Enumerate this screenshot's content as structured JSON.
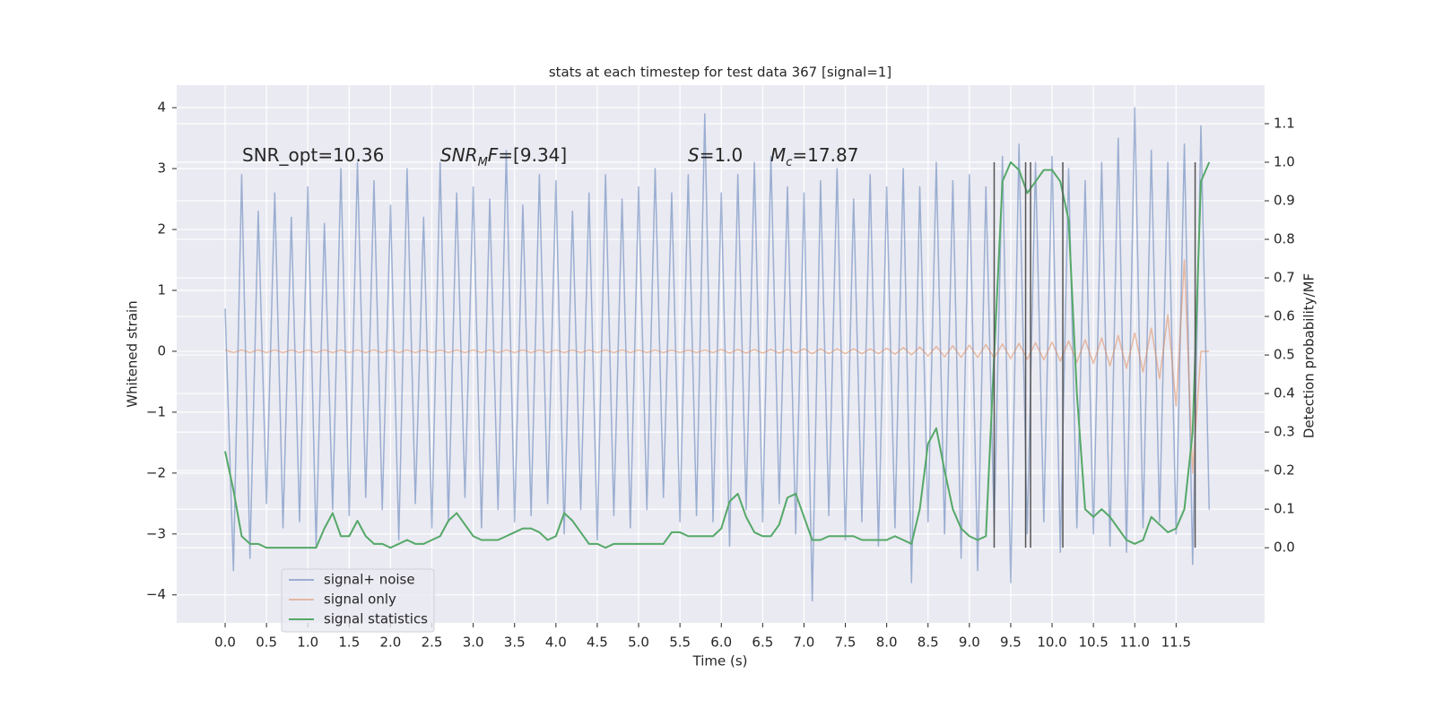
{
  "chart_data": {
    "type": "line",
    "title": "stats at each timestep for test data 367 [signal=1]",
    "xlabel": "Time (s)",
    "ylabel": "Whitened strain",
    "y2label": "Detection probability/MF",
    "xlim": [
      -0.586,
      12.57
    ],
    "ylim": [
      -4.46,
      4.37
    ],
    "y2lim": [
      -0.195,
      1.2
    ],
    "grid": true,
    "legend": "lower left",
    "xticks": [
      {
        "value": 0,
        "label": "0.0"
      },
      {
        "value": 0.5,
        "label": "0.5"
      },
      {
        "value": 1,
        "label": "1.0"
      },
      {
        "value": 1.5,
        "label": "1.5"
      },
      {
        "value": 2,
        "label": "2.0"
      },
      {
        "value": 2.5,
        "label": "2.5"
      },
      {
        "value": 3,
        "label": "3.0"
      },
      {
        "value": 3.5,
        "label": "3.5"
      },
      {
        "value": 4,
        "label": "4.0"
      },
      {
        "value": 4.5,
        "label": "4.5"
      },
      {
        "value": 5,
        "label": "5.0"
      },
      {
        "value": 5.5,
        "label": "5.5"
      },
      {
        "value": 6,
        "label": "6.0"
      },
      {
        "value": 6.5,
        "label": "6.5"
      },
      {
        "value": 7,
        "label": "7.0"
      },
      {
        "value": 7.5,
        "label": "7.5"
      },
      {
        "value": 8,
        "label": "8.0"
      },
      {
        "value": 8.5,
        "label": "8.5"
      },
      {
        "value": 9,
        "label": "9.0"
      },
      {
        "value": 9.5,
        "label": "9.5"
      },
      {
        "value": 10,
        "label": "10.0"
      },
      {
        "value": 10.5,
        "label": "10.5"
      },
      {
        "value": 11,
        "label": "11.0"
      },
      {
        "value": 11.5,
        "label": "11.5"
      }
    ],
    "yticks": [
      {
        "value": -4,
        "label": "−4"
      },
      {
        "value": -3,
        "label": "−3"
      },
      {
        "value": -2,
        "label": "−2"
      },
      {
        "value": -1,
        "label": "−1"
      },
      0,
      1,
      2,
      3,
      4
    ],
    "y2ticks": [
      {
        "value": 0,
        "label": "0.0"
      },
      0.1,
      0.2,
      0.3,
      0.4,
      0.5,
      0.6,
      0.7,
      0.8,
      0.9,
      {
        "value": 1,
        "label": "1.0"
      },
      1.1
    ],
    "x": [
      0,
      0.1,
      0.2,
      0.3,
      0.4,
      0.5,
      0.6,
      0.7,
      0.8,
      0.9,
      1,
      1.1,
      1.2,
      1.3,
      1.4,
      1.5,
      1.6,
      1.7,
      1.8,
      1.9,
      2,
      2.1,
      2.2,
      2.3,
      2.4,
      2.5,
      2.6,
      2.7,
      2.8,
      2.9,
      3,
      3.1,
      3.2,
      3.3,
      3.4,
      3.5,
      3.6,
      3.7,
      3.8,
      3.9,
      4,
      4.1,
      4.2,
      4.3,
      4.4,
      4.5,
      4.6,
      4.7,
      4.8,
      4.9,
      5,
      5.1,
      5.2,
      5.3,
      5.4,
      5.5,
      5.6,
      5.7,
      5.8,
      5.9,
      6,
      6.1,
      6.2,
      6.3,
      6.4,
      6.5,
      6.6,
      6.7,
      6.8,
      6.9,
      7,
      7.1,
      7.2,
      7.3,
      7.4,
      7.5,
      7.6,
      7.7,
      7.8,
      7.9,
      8,
      8.1,
      8.2,
      8.3,
      8.4,
      8.5,
      8.6,
      8.7,
      8.8,
      8.9,
      9,
      9.1,
      9.2,
      9.3,
      9.4,
      9.5,
      9.6,
      9.7,
      9.8,
      9.9,
      10,
      10.1,
      10.2,
      10.3,
      10.4,
      10.5,
      10.6,
      10.7,
      10.8,
      10.9,
      11,
      11.1,
      11.2,
      11.3,
      11.4,
      11.5,
      11.6,
      11.7,
      11.8,
      11.9
    ],
    "series": [
      {
        "name": "signal+ noise",
        "color": "#4c72b0",
        "alpha": 0.5,
        "values": [
          0.7,
          -3.6,
          2.9,
          -3.4,
          2.3,
          -2.5,
          2.6,
          -2.9,
          2.2,
          -2.8,
          2.7,
          -3.2,
          2.1,
          -2.6,
          3.0,
          -2.7,
          3.1,
          -2.4,
          2.8,
          -2.6,
          2.4,
          -3.1,
          3.0,
          -2.5,
          2.2,
          -2.9,
          3.1,
          -2.8,
          2.6,
          -2.4,
          2.7,
          -2.9,
          2.5,
          -2.6,
          3.3,
          -2.8,
          2.4,
          -2.7,
          2.9,
          -2.5,
          2.8,
          -3.0,
          2.3,
          -2.6,
          2.6,
          -3.1,
          2.9,
          -2.7,
          2.5,
          -2.9,
          2.7,
          -2.6,
          3.0,
          -2.4,
          2.6,
          -2.8,
          2.9,
          -2.7,
          3.9,
          -2.8,
          2.6,
          -3.2,
          2.9,
          -2.6,
          3.1,
          -2.8,
          3.2,
          -2.5,
          2.7,
          -3.0,
          2.6,
          -4.1,
          2.8,
          -2.7,
          3.0,
          -3.1,
          2.5,
          -2.8,
          2.9,
          -3.2,
          2.7,
          -2.9,
          3.0,
          -3.8,
          2.7,
          -2.8,
          3.1,
          -3.0,
          2.8,
          -3.4,
          2.9,
          -3.6,
          2.7,
          -2.9,
          3.2,
          -3.8,
          3.4,
          -3.0,
          3.1,
          -2.8,
          3.2,
          -3.3,
          3.0,
          -2.9,
          2.8,
          -3.0,
          3.1,
          -3.2,
          3.5,
          -3.3,
          4.0,
          -2.9,
          3.3,
          -2.8,
          3.1,
          -3.0,
          3.4,
          -3.5,
          3.7,
          -2.6
        ]
      },
      {
        "name": "signal only",
        "color": "#dd8452",
        "alpha": 0.5,
        "values": [
          0.02,
          -0.02,
          0.02,
          -0.02,
          0.02,
          -0.02,
          0.02,
          -0.02,
          0.02,
          -0.02,
          0.02,
          -0.02,
          0.02,
          -0.02,
          0.02,
          -0.02,
          0.02,
          -0.02,
          0.02,
          -0.02,
          0.02,
          -0.02,
          0.02,
          -0.02,
          0.02,
          -0.02,
          0.02,
          -0.02,
          0.02,
          -0.02,
          0.02,
          -0.02,
          0.02,
          -0.02,
          0.02,
          -0.02,
          0.02,
          -0.02,
          0.02,
          -0.02,
          0.02,
          -0.02,
          0.02,
          -0.02,
          0.02,
          -0.02,
          0.02,
          -0.02,
          0.02,
          -0.02,
          0.02,
          -0.02,
          0.02,
          -0.02,
          0.02,
          -0.02,
          0.02,
          -0.02,
          0.02,
          -0.02,
          0.03,
          -0.03,
          0.03,
          -0.03,
          0.03,
          -0.03,
          0.03,
          -0.03,
          0.03,
          -0.03,
          0.04,
          -0.04,
          0.04,
          -0.04,
          0.04,
          -0.04,
          0.04,
          -0.04,
          0.04,
          -0.04,
          0.05,
          -0.05,
          0.06,
          -0.06,
          0.07,
          -0.08,
          0.08,
          -0.09,
          0.09,
          -0.1,
          0.1,
          -0.1,
          0.11,
          -0.11,
          0.12,
          -0.12,
          0.13,
          -0.13,
          0.14,
          -0.14,
          0.15,
          -0.16,
          0.17,
          -0.18,
          0.19,
          -0.2,
          0.22,
          -0.24,
          0.26,
          -0.28,
          0.3,
          -0.34,
          0.38,
          -0.45,
          0.6,
          -0.9,
          1.5,
          -2.0,
          0,
          0
        ]
      },
      {
        "name": "signal statistics",
        "color": "#55a868",
        "alpha": 1,
        "axis": "y2",
        "values": [
          0.25,
          0.15,
          0.03,
          0.01,
          0.01,
          0.0,
          0.0,
          0.0,
          0.0,
          0.0,
          0.0,
          0.0,
          0.05,
          0.09,
          0.03,
          0.03,
          0.07,
          0.03,
          0.01,
          0.01,
          0.0,
          0.01,
          0.02,
          0.01,
          0.01,
          0.02,
          0.03,
          0.07,
          0.09,
          0.06,
          0.03,
          0.02,
          0.02,
          0.02,
          0.03,
          0.04,
          0.05,
          0.05,
          0.04,
          0.02,
          0.03,
          0.09,
          0.07,
          0.04,
          0.01,
          0.01,
          0.0,
          0.01,
          0.01,
          0.01,
          0.01,
          0.01,
          0.01,
          0.01,
          0.04,
          0.04,
          0.03,
          0.03,
          0.03,
          0.03,
          0.05,
          0.12,
          0.14,
          0.08,
          0.04,
          0.03,
          0.03,
          0.06,
          0.13,
          0.14,
          0.08,
          0.02,
          0.02,
          0.03,
          0.03,
          0.03,
          0.03,
          0.02,
          0.02,
          0.02,
          0.02,
          0.03,
          0.02,
          0.01,
          0.1,
          0.27,
          0.31,
          0.2,
          0.1,
          0.05,
          0.03,
          0.02,
          0.03,
          0.5,
          0.95,
          1.0,
          0.98,
          0.92,
          0.95,
          0.98,
          0.98,
          0.95,
          0.85,
          0.4,
          0.1,
          0.08,
          0.1,
          0.08,
          0.05,
          0.02,
          0.01,
          0.02,
          0.08,
          0.06,
          0.04,
          0.05,
          0.1,
          0.3,
          0.95,
          1.0
        ]
      }
    ],
    "vlines": {
      "x": [
        9.3,
        9.68,
        9.74,
        10.13,
        11.73
      ],
      "ymin": 0,
      "ymax": 1.0,
      "color": "#555555"
    },
    "annotations": [
      [
        {
          "text": "SNR_opt=10.36"
        }
      ],
      [
        {
          "text": "SNR",
          "style": "italic"
        },
        {
          "text": "M",
          "style": "sub"
        },
        {
          "text": "F",
          "style": "italic"
        },
        {
          "text": "=[9.34]"
        }
      ],
      [
        {
          "text": "S",
          "style": "italic"
        },
        {
          "text": "=1.0"
        }
      ],
      [
        {
          "text": "M",
          "style": "italic"
        },
        {
          "text": "c",
          "style": "sub"
        },
        {
          "text": "=17.87"
        }
      ]
    ]
  }
}
